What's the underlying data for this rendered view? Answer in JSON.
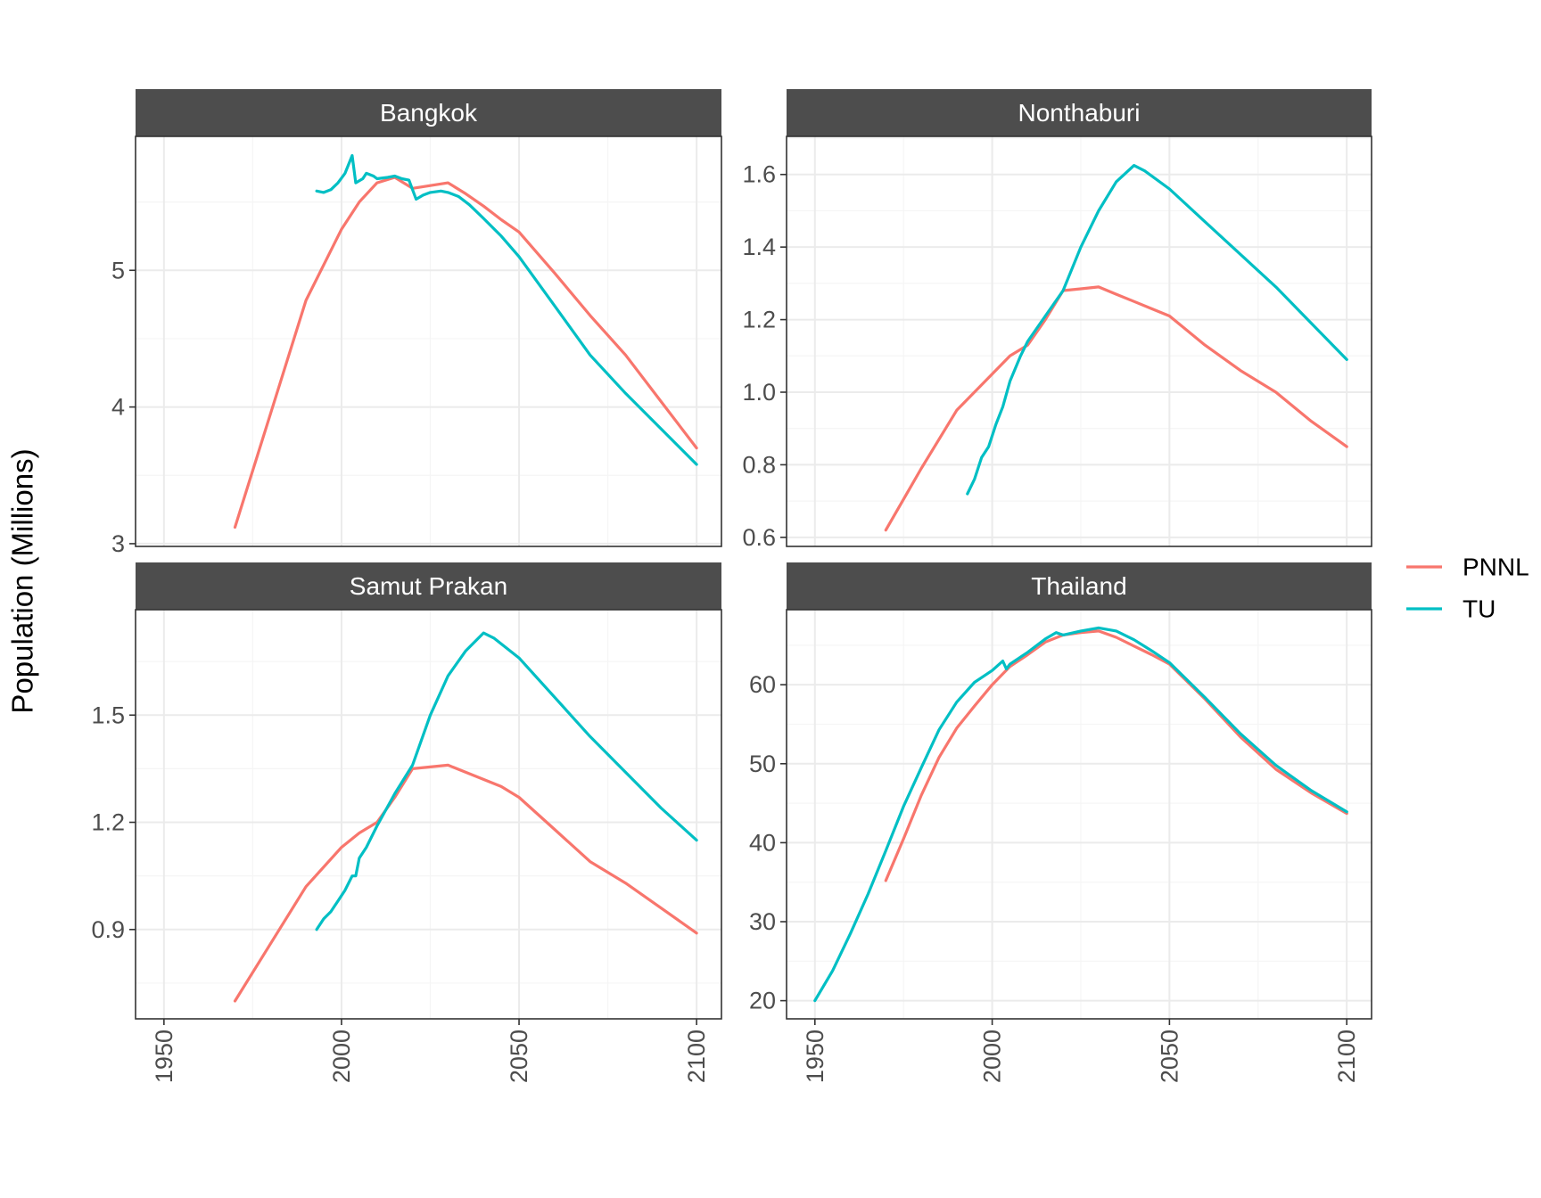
{
  "colors": {
    "PNNL": "#F8766D",
    "TU": "#00BFC4",
    "strip_bg": "#4D4D4D",
    "strip_text": "#FFFFFF",
    "grid_major": "#EBEBEB",
    "grid_minor": "#F5F5F5",
    "tick_text": "#4D4D4D"
  },
  "ylabel": "Population (Millions)",
  "legend": {
    "placement": "right",
    "items": [
      {
        "key": "PNNL",
        "label": "PNNL"
      },
      {
        "key": "TU",
        "label": "TU"
      }
    ]
  },
  "chart_data": [
    {
      "type": "line",
      "title": "Bangkok",
      "xlim": [
        1942,
        2107
      ],
      "ylim": [
        2.98,
        5.98
      ],
      "xticks": [
        1950,
        2000,
        2050,
        2100
      ],
      "xtick_labels": [
        "1950",
        "2000",
        "2050",
        "2100"
      ],
      "yticks": [
        3,
        4,
        5
      ],
      "ytick_labels": [
        "3",
        "4",
        "5"
      ],
      "ygrid_minor": [
        3.5,
        4.5,
        5.5
      ],
      "show_x_ticks": false,
      "series": [
        {
          "name": "PNNL",
          "points": [
            [
              1970,
              3.12
            ],
            [
              1980,
              3.95
            ],
            [
              1990,
              4.78
            ],
            [
              2000,
              5.3
            ],
            [
              2005,
              5.5
            ],
            [
              2010,
              5.64
            ],
            [
              2015,
              5.68
            ],
            [
              2020,
              5.6
            ],
            [
              2025,
              5.62
            ],
            [
              2030,
              5.64
            ],
            [
              2035,
              5.56
            ],
            [
              2040,
              5.47
            ],
            [
              2045,
              5.37
            ],
            [
              2050,
              5.28
            ],
            [
              2060,
              4.98
            ],
            [
              2070,
              4.67
            ],
            [
              2080,
              4.38
            ],
            [
              2090,
              4.04
            ],
            [
              2100,
              3.7
            ]
          ]
        },
        {
          "name": "TU",
          "points": [
            [
              1993,
              5.58
            ],
            [
              1995,
              5.57
            ],
            [
              1997,
              5.59
            ],
            [
              1999,
              5.64
            ],
            [
              2001,
              5.71
            ],
            [
              2003,
              5.84
            ],
            [
              2004,
              5.64
            ],
            [
              2006,
              5.67
            ],
            [
              2007,
              5.71
            ],
            [
              2009,
              5.69
            ],
            [
              2010,
              5.67
            ],
            [
              2013,
              5.68
            ],
            [
              2015,
              5.69
            ],
            [
              2017,
              5.67
            ],
            [
              2019,
              5.66
            ],
            [
              2021,
              5.52
            ],
            [
              2023,
              5.55
            ],
            [
              2025,
              5.57
            ],
            [
              2028,
              5.58
            ],
            [
              2030,
              5.57
            ],
            [
              2033,
              5.54
            ],
            [
              2036,
              5.48
            ],
            [
              2040,
              5.38
            ],
            [
              2045,
              5.25
            ],
            [
              2050,
              5.1
            ],
            [
              2060,
              4.74
            ],
            [
              2070,
              4.38
            ],
            [
              2080,
              4.1
            ],
            [
              2090,
              3.84
            ],
            [
              2100,
              3.58
            ]
          ]
        }
      ]
    },
    {
      "type": "line",
      "title": "Nonthaburi",
      "xlim": [
        1942,
        2107
      ],
      "ylim": [
        0.575,
        1.705
      ],
      "xticks": [
        1950,
        2000,
        2050,
        2100
      ],
      "xtick_labels": [
        "1950",
        "2000",
        "2050",
        "2100"
      ],
      "yticks": [
        0.6,
        0.8,
        1.0,
        1.2,
        1.4,
        1.6
      ],
      "ytick_labels": [
        "0.6",
        "0.8",
        "1.0",
        "1.2",
        "1.4",
        "1.6"
      ],
      "ygrid_minor": [
        0.7,
        0.9,
        1.1,
        1.3,
        1.5,
        1.7
      ],
      "show_x_ticks": false,
      "series": [
        {
          "name": "PNNL",
          "points": [
            [
              1970,
              0.62
            ],
            [
              1980,
              0.79
            ],
            [
              1990,
              0.95
            ],
            [
              2000,
              1.05
            ],
            [
              2005,
              1.1
            ],
            [
              2010,
              1.13
            ],
            [
              2015,
              1.2
            ],
            [
              2020,
              1.28
            ],
            [
              2025,
              1.285
            ],
            [
              2030,
              1.29
            ],
            [
              2035,
              1.27
            ],
            [
              2040,
              1.25
            ],
            [
              2045,
              1.23
            ],
            [
              2050,
              1.21
            ],
            [
              2060,
              1.13
            ],
            [
              2070,
              1.06
            ],
            [
              2080,
              1.0
            ],
            [
              2090,
              0.92
            ],
            [
              2100,
              0.85
            ]
          ]
        },
        {
          "name": "TU",
          "points": [
            [
              1993,
              0.72
            ],
            [
              1995,
              0.76
            ],
            [
              1997,
              0.82
            ],
            [
              1999,
              0.85
            ],
            [
              2001,
              0.91
            ],
            [
              2003,
              0.96
            ],
            [
              2005,
              1.03
            ],
            [
              2008,
              1.1
            ],
            [
              2010,
              1.14
            ],
            [
              2015,
              1.21
            ],
            [
              2020,
              1.28
            ],
            [
              2025,
              1.4
            ],
            [
              2030,
              1.5
            ],
            [
              2035,
              1.58
            ],
            [
              2040,
              1.625
            ],
            [
              2043,
              1.61
            ],
            [
              2050,
              1.56
            ],
            [
              2060,
              1.47
            ],
            [
              2070,
              1.38
            ],
            [
              2080,
              1.29
            ],
            [
              2090,
              1.19
            ],
            [
              2100,
              1.09
            ]
          ]
        }
      ]
    },
    {
      "type": "line",
      "title": "Samut Prakan",
      "xlim": [
        1942,
        2107
      ],
      "ylim": [
        0.65,
        1.795
      ],
      "xticks": [
        1950,
        2000,
        2050,
        2100
      ],
      "xtick_labels": [
        "1950",
        "2000",
        "2050",
        "2100"
      ],
      "yticks": [
        0.9,
        1.2,
        1.5
      ],
      "ytick_labels": [
        "0.9",
        "1.2",
        "1.5"
      ],
      "ygrid_minor": [
        0.75,
        1.05,
        1.35,
        1.65
      ],
      "show_x_ticks": true,
      "series": [
        {
          "name": "PNNL",
          "points": [
            [
              1970,
              0.7
            ],
            [
              1980,
              0.86
            ],
            [
              1990,
              1.02
            ],
            [
              2000,
              1.13
            ],
            [
              2005,
              1.17
            ],
            [
              2010,
              1.2
            ],
            [
              2015,
              1.27
            ],
            [
              2020,
              1.35
            ],
            [
              2025,
              1.355
            ],
            [
              2030,
              1.36
            ],
            [
              2035,
              1.34
            ],
            [
              2040,
              1.32
            ],
            [
              2045,
              1.3
            ],
            [
              2050,
              1.27
            ],
            [
              2060,
              1.18
            ],
            [
              2070,
              1.09
            ],
            [
              2080,
              1.03
            ],
            [
              2090,
              0.96
            ],
            [
              2100,
              0.89
            ]
          ]
        },
        {
          "name": "TU",
          "points": [
            [
              1993,
              0.9
            ],
            [
              1995,
              0.93
            ],
            [
              1997,
              0.95
            ],
            [
              1999,
              0.98
            ],
            [
              2001,
              1.01
            ],
            [
              2003,
              1.05
            ],
            [
              2004,
              1.05
            ],
            [
              2005,
              1.1
            ],
            [
              2007,
              1.13
            ],
            [
              2010,
              1.19
            ],
            [
              2015,
              1.28
            ],
            [
              2020,
              1.36
            ],
            [
              2025,
              1.5
            ],
            [
              2030,
              1.61
            ],
            [
              2035,
              1.68
            ],
            [
              2040,
              1.73
            ],
            [
              2043,
              1.715
            ],
            [
              2050,
              1.66
            ],
            [
              2060,
              1.55
            ],
            [
              2070,
              1.44
            ],
            [
              2080,
              1.34
            ],
            [
              2090,
              1.24
            ],
            [
              2100,
              1.15
            ]
          ]
        }
      ]
    },
    {
      "type": "line",
      "title": "Thailand",
      "xlim": [
        1942,
        2107
      ],
      "ylim": [
        17.7,
        69.5
      ],
      "xticks": [
        1950,
        2000,
        2050,
        2100
      ],
      "xtick_labels": [
        "1950",
        "2000",
        "2050",
        "2100"
      ],
      "yticks": [
        20,
        30,
        40,
        50,
        60
      ],
      "ytick_labels": [
        "20",
        "30",
        "40",
        "50",
        "60"
      ],
      "ygrid_minor": [
        25,
        35,
        45,
        55,
        65
      ],
      "show_x_ticks": true,
      "series": [
        {
          "name": "PNNL",
          "points": [
            [
              1970,
              35.2
            ],
            [
              1975,
              40.5
            ],
            [
              1980,
              46.0
            ],
            [
              1985,
              50.8
            ],
            [
              1990,
              54.5
            ],
            [
              1995,
              57.3
            ],
            [
              2000,
              60.0
            ],
            [
              2005,
              62.3
            ],
            [
              2010,
              63.8
            ],
            [
              2015,
              65.4
            ],
            [
              2020,
              66.3
            ],
            [
              2025,
              66.6
            ],
            [
              2030,
              66.8
            ],
            [
              2035,
              66.0
            ],
            [
              2040,
              64.9
            ],
            [
              2045,
              63.8
            ],
            [
              2050,
              62.6
            ],
            [
              2060,
              58.2
            ],
            [
              2070,
              53.4
            ],
            [
              2080,
              49.3
            ],
            [
              2090,
              46.3
            ],
            [
              2100,
              43.7
            ]
          ]
        },
        {
          "name": "TU",
          "points": [
            [
              1950,
              20.0
            ],
            [
              1955,
              23.8
            ],
            [
              1960,
              28.5
            ],
            [
              1965,
              33.5
            ],
            [
              1970,
              39.0
            ],
            [
              1975,
              44.6
            ],
            [
              1980,
              49.5
            ],
            [
              1985,
              54.3
            ],
            [
              1990,
              57.8
            ],
            [
              1995,
              60.3
            ],
            [
              2000,
              61.8
            ],
            [
              2003,
              63.0
            ],
            [
              2004,
              62.0
            ],
            [
              2005,
              62.6
            ],
            [
              2010,
              64.1
            ],
            [
              2015,
              65.8
            ],
            [
              2018,
              66.6
            ],
            [
              2020,
              66.3
            ],
            [
              2025,
              66.8
            ],
            [
              2030,
              67.2
            ],
            [
              2035,
              66.8
            ],
            [
              2040,
              65.7
            ],
            [
              2045,
              64.3
            ],
            [
              2050,
              62.8
            ],
            [
              2060,
              58.4
            ],
            [
              2070,
              53.8
            ],
            [
              2080,
              49.8
            ],
            [
              2090,
              46.6
            ],
            [
              2100,
              43.9
            ]
          ]
        }
      ]
    }
  ]
}
